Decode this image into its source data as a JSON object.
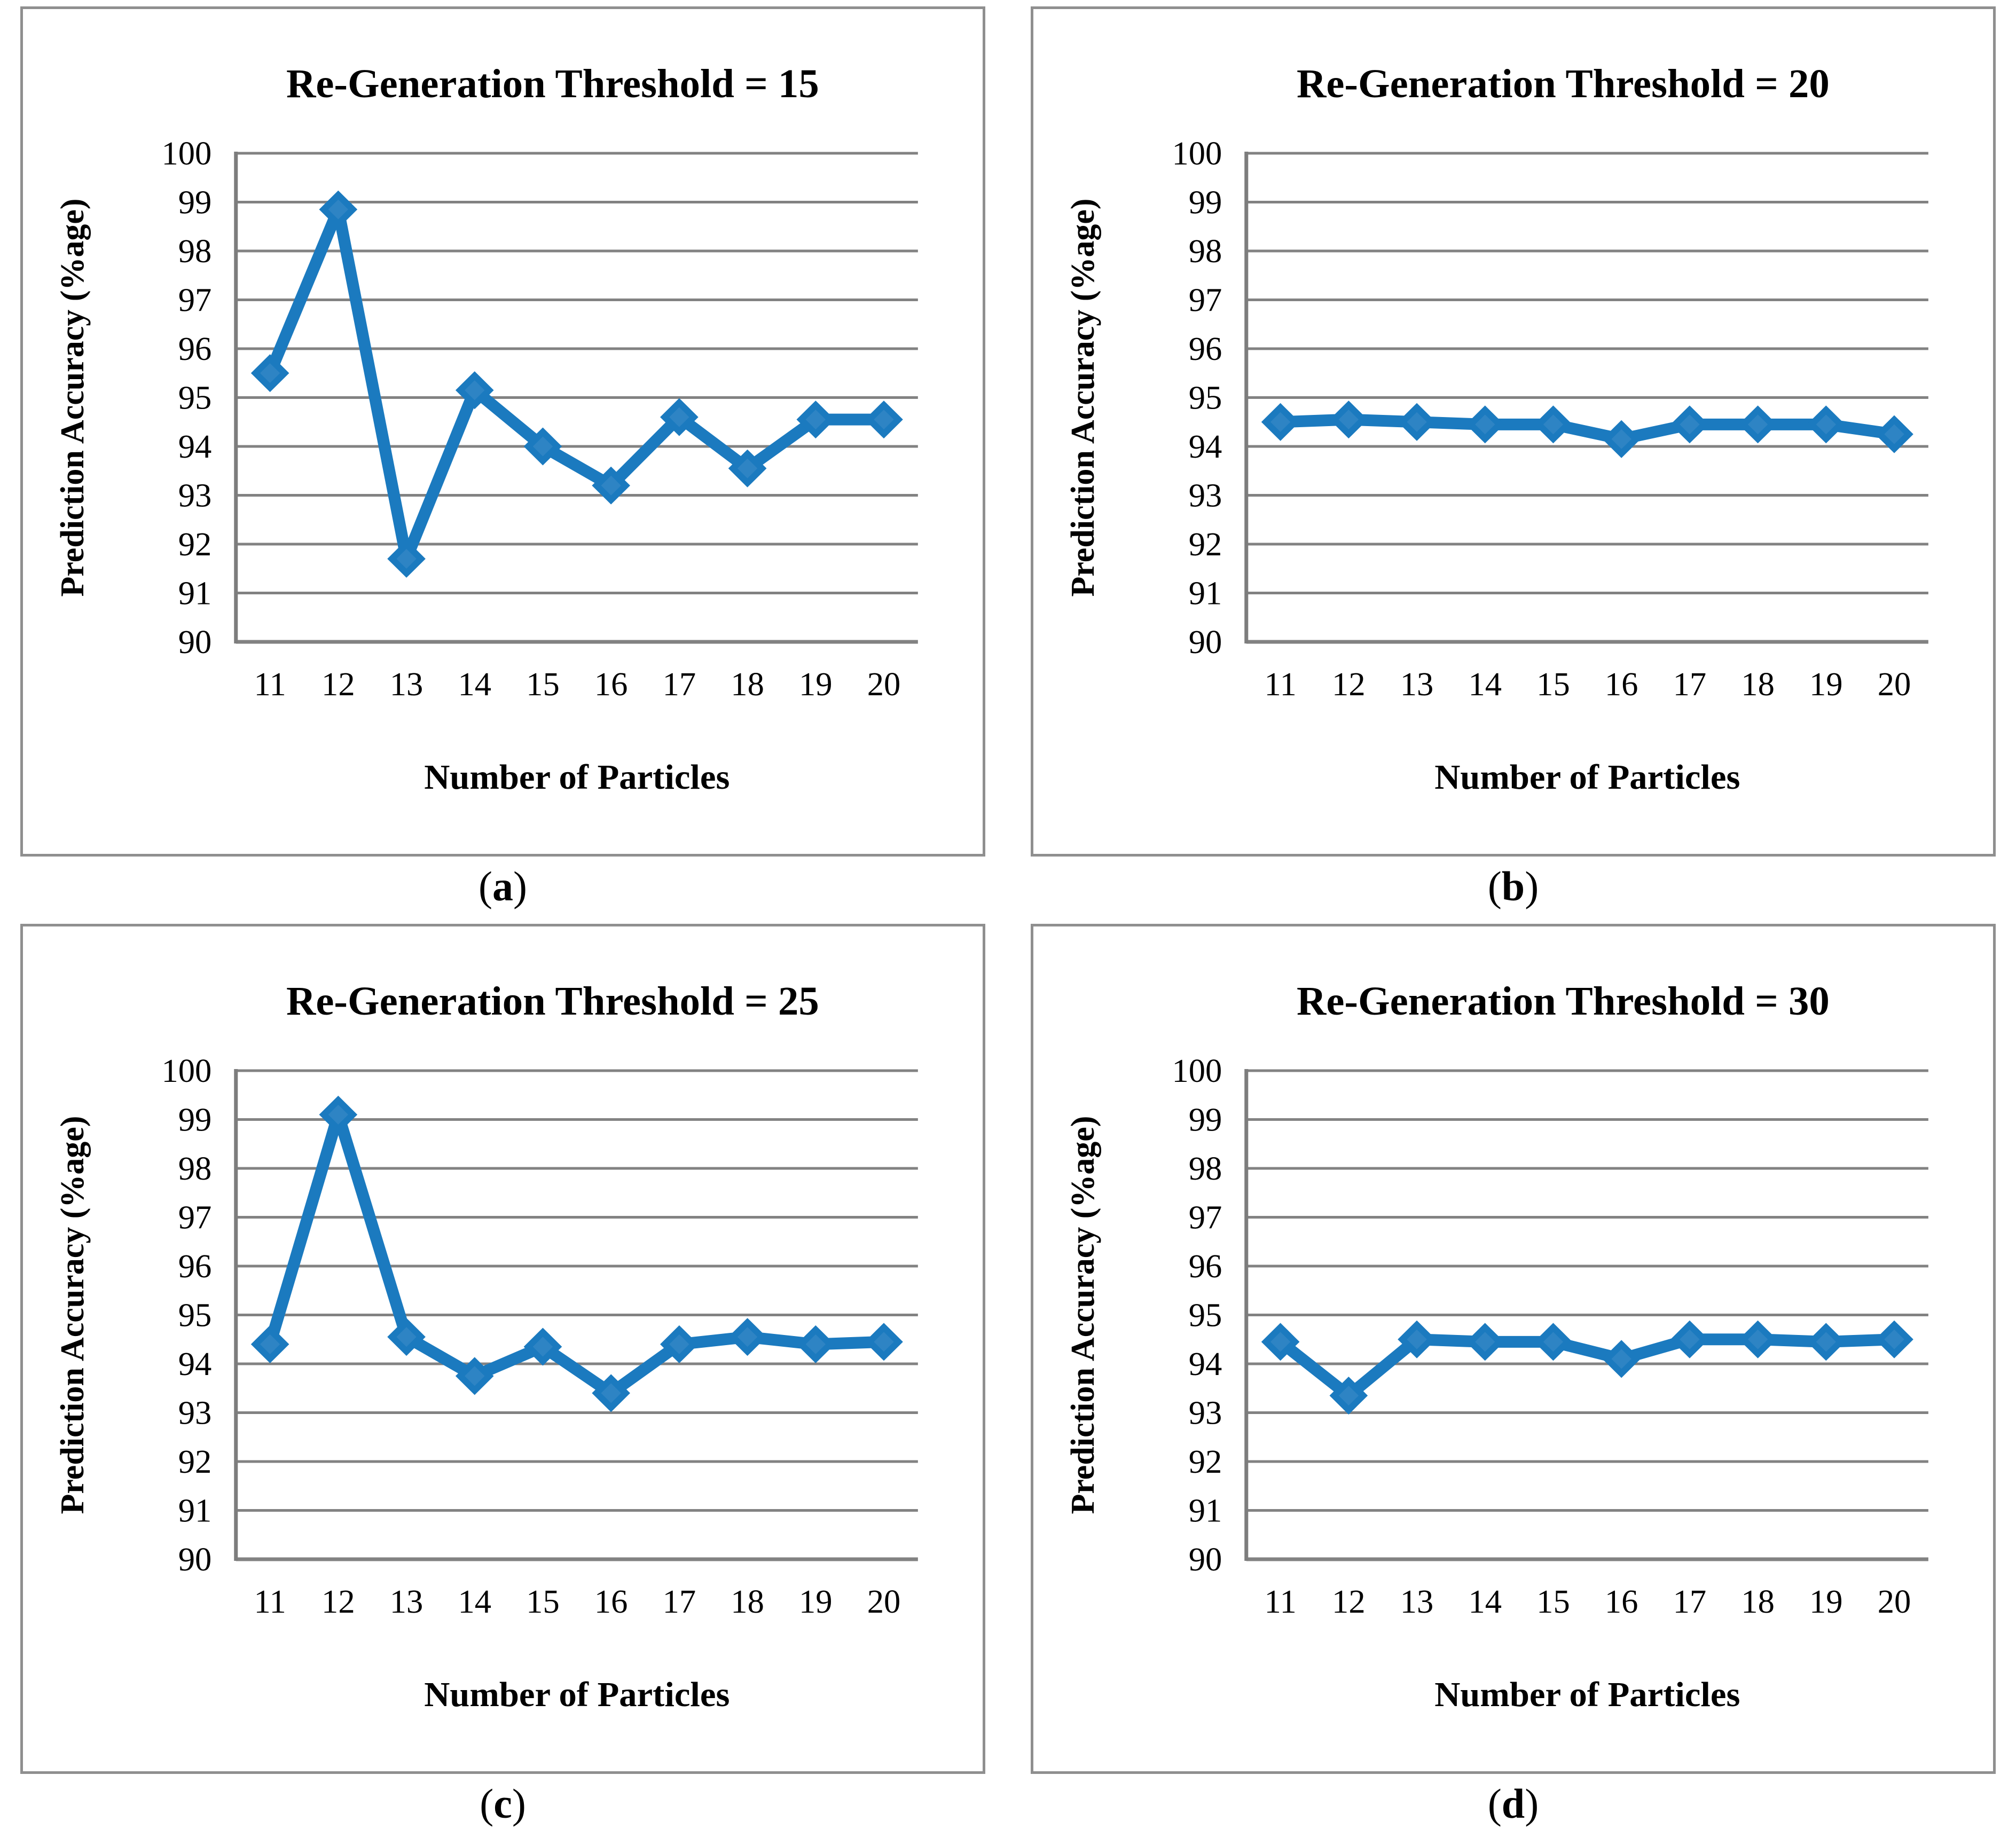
{
  "figure": {
    "ylabel": "Prediction Accuracy (%age)",
    "xlabel": "Number of Particles",
    "panels": [
      {
        "title": "Re-Generation Threshold = 15",
        "caption": {
          "open": "(",
          "letter": "a",
          "close": ")"
        }
      },
      {
        "title": "Re-Generation Threshold = 20",
        "caption": {
          "open": "(",
          "letter": "b",
          "close": ")"
        }
      },
      {
        "title": "Re-Generation Threshold = 25",
        "caption": {
          "open": "(",
          "letter": "c",
          "close": ")"
        }
      },
      {
        "title": "Re-Generation Threshold = 30",
        "caption": {
          "open": "(",
          "letter": "d",
          "close": ")"
        }
      }
    ]
  },
  "chart_data": [
    {
      "type": "line",
      "title": "Re-Generation Threshold = 15",
      "xlabel": "Number of Particles",
      "ylabel": "Prediction Accuracy (%age)",
      "x": [
        11,
        12,
        13,
        14,
        15,
        16,
        17,
        18,
        19,
        20
      ],
      "values": [
        95.5,
        98.85,
        91.7,
        95.15,
        94.0,
        93.2,
        94.6,
        93.55,
        94.55,
        94.55
      ],
      "ylim": [
        90,
        100
      ],
      "ytick_step": 1,
      "grid": true,
      "legend": "none"
    },
    {
      "type": "line",
      "title": "Re-Generation Threshold = 20",
      "xlabel": "Number of Particles",
      "ylabel": "Prediction Accuracy (%age)",
      "x": [
        11,
        12,
        13,
        14,
        15,
        16,
        17,
        18,
        19,
        20
      ],
      "values": [
        94.5,
        94.55,
        94.5,
        94.45,
        94.45,
        94.15,
        94.45,
        94.45,
        94.45,
        94.25
      ],
      "ylim": [
        90,
        100
      ],
      "ytick_step": 1,
      "grid": true,
      "legend": "none"
    },
    {
      "type": "line",
      "title": "Re-Generation Threshold = 25",
      "xlabel": "Number of Particles",
      "ylabel": "Prediction Accuracy (%age)",
      "x": [
        11,
        12,
        13,
        14,
        15,
        16,
        17,
        18,
        19,
        20
      ],
      "values": [
        94.4,
        99.1,
        94.55,
        93.75,
        94.35,
        93.4,
        94.4,
        94.55,
        94.4,
        94.45
      ],
      "ylim": [
        90,
        100
      ],
      "ytick_step": 1,
      "grid": true,
      "legend": "none"
    },
    {
      "type": "line",
      "title": "Re-Generation Threshold = 30",
      "xlabel": "Number of Particles",
      "ylabel": "Prediction Accuracy (%age)",
      "x": [
        11,
        12,
        13,
        14,
        15,
        16,
        17,
        18,
        19,
        20
      ],
      "values": [
        94.45,
        93.35,
        94.5,
        94.45,
        94.45,
        94.1,
        94.5,
        94.5,
        94.45,
        94.5
      ],
      "ylim": [
        90,
        100
      ],
      "ytick_step": 1,
      "grid": true,
      "legend": "none"
    }
  ],
  "style": {
    "line_color": "#1b7abf",
    "marker_fill": "#2e84c4",
    "grid_color": "#828282",
    "axis_color": "#7d7d7d",
    "panel_border_color": "#8f8f8f",
    "text_color": "#000000"
  }
}
